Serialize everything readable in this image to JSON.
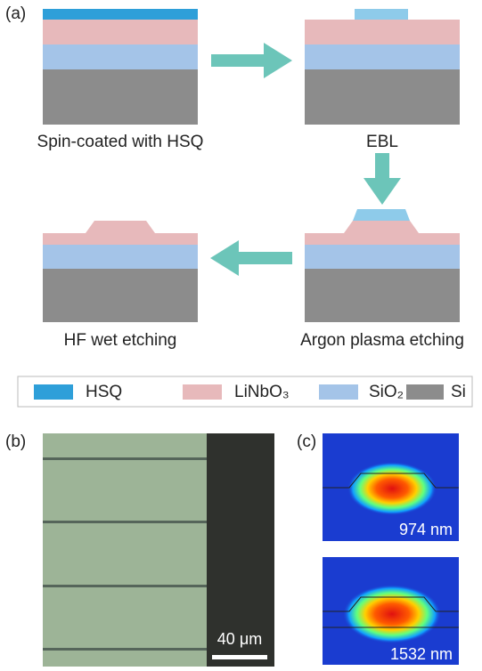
{
  "panel_a": {
    "label": "(a)",
    "steps": [
      "Spin-coated with HSQ",
      "EBL",
      "Argon plasma etching",
      "HF wet etching"
    ]
  },
  "legend": [
    "HSQ",
    "LiNbO₃",
    "SiO₂",
    "Si"
  ],
  "panel_b": {
    "label": "(b)",
    "scale_bar": "40 μm"
  },
  "panel_c": {
    "label": "(c)",
    "modes": [
      "974 nm",
      "1532 nm"
    ]
  }
}
